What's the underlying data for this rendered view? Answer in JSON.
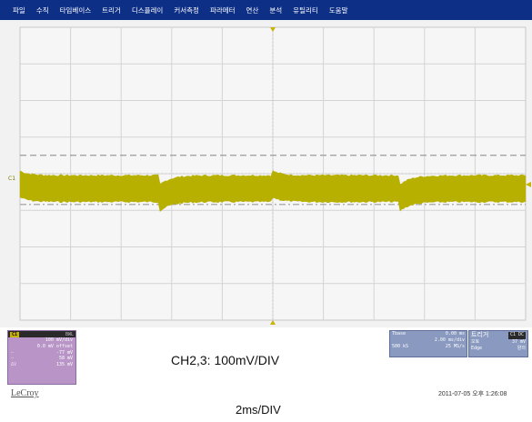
{
  "menu": [
    "파일",
    "수직",
    "타임베이스",
    "트리거",
    "디스플레이",
    "커서측정",
    "파라메터",
    "연산",
    "분석",
    "유틸리티",
    "도움말"
  ],
  "colors": {
    "menubar": "#0d2f86",
    "screen_bg": "#f2f2f2",
    "trace": "#b8b000",
    "marker": "#c9b200",
    "grid_dash": "#9a9a9a"
  },
  "screen": {
    "channel_marker": "C1",
    "trigger_marker_icon": "trigger-arrow-icon",
    "trace_level_percent_from_top": 55,
    "upper_cursor_percent_from_top": 44,
    "lower_cursor_percent_from_top": 60
  },
  "channel_panel": {
    "tag": "C1",
    "badge": "BWL",
    "rows": [
      {
        "label": "",
        "value": "100 mV/div"
      },
      {
        "label": "",
        "value": "0.0 mV offset"
      },
      {
        "label": "—",
        "value": "-77 mV"
      },
      {
        "label": "—",
        "value": "58 mV"
      },
      {
        "label": "ΔV",
        "value": "135 mV"
      }
    ]
  },
  "brand": "LeCroy",
  "timebase_panel": {
    "rows": [
      {
        "label": "Tbase",
        "value": "0.00 ms"
      },
      {
        "label": "",
        "value": "2.00 ms/div"
      },
      {
        "label": "500 kS",
        "value": "25 MS/s"
      }
    ]
  },
  "trigger_panel": {
    "title": "트리거",
    "badge": "C1 DC",
    "rows": [
      {
        "label": "오토",
        "value": "37 mV"
      },
      {
        "label": "Edge",
        "value": "양의"
      }
    ]
  },
  "caption_volts": "CH2,3: 100mV/DIV",
  "datetime": "2011-07-05 오후 1:26:08",
  "caption_time": "2ms/DIV"
}
